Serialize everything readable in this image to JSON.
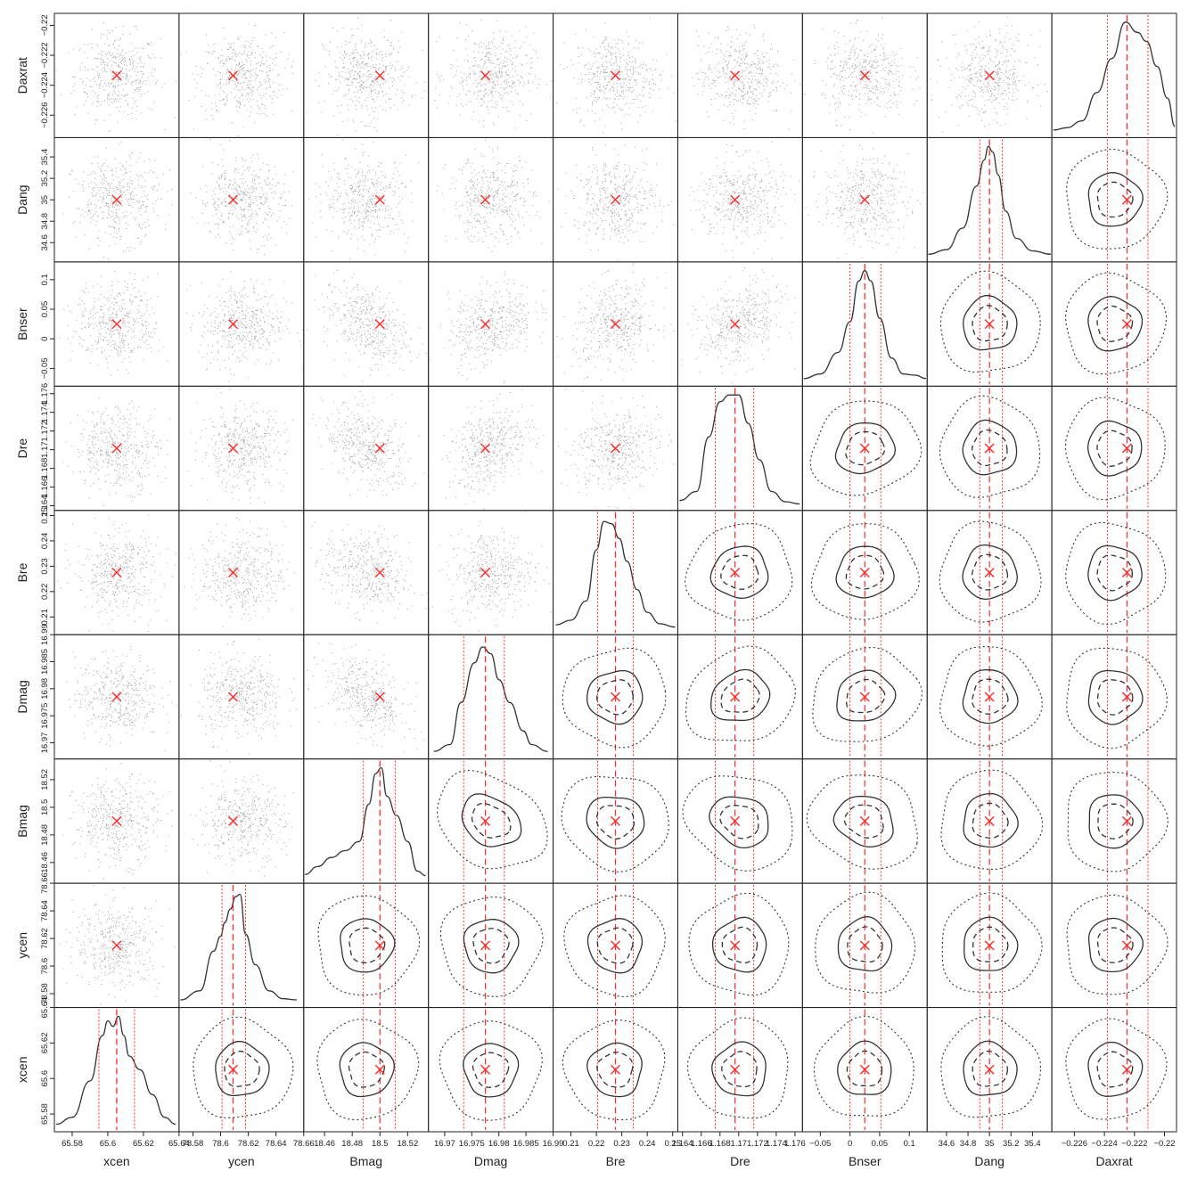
{
  "chart_data": {
    "type": "scatter",
    "subtype": "triangle-corner-plot",
    "parameters": [
      {
        "name": "xcen",
        "lim": [
          65.57,
          65.64
        ],
        "ticks": [
          65.58,
          65.6,
          65.62,
          65.64
        ],
        "tick_labels": [
          "65.58",
          "65.6",
          "65.62",
          "65.64"
        ],
        "best": 65.605,
        "dens": [
          [
            65.571,
            0.02
          ],
          [
            65.58,
            0.08
          ],
          [
            65.59,
            0.4
          ],
          [
            65.597,
            0.8
          ],
          [
            65.6,
            0.93
          ],
          [
            65.603,
            0.88
          ],
          [
            65.606,
            0.97
          ],
          [
            65.609,
            0.8
          ],
          [
            65.612,
            0.62
          ],
          [
            65.618,
            0.5
          ],
          [
            65.625,
            0.28
          ],
          [
            65.632,
            0.08
          ],
          [
            65.638,
            0.02
          ]
        ],
        "q": [
          65.595,
          65.605,
          65.615
        ]
      },
      {
        "name": "ycen",
        "lim": [
          78.57,
          78.66
        ],
        "ticks": [
          78.58,
          78.6,
          78.62,
          78.64,
          78.66
        ],
        "tick_labels": [
          "78.58",
          "78.6",
          "78.62",
          "78.64",
          "78.66"
        ],
        "best": 78.609,
        "dens": [
          [
            78.571,
            0.02
          ],
          [
            78.585,
            0.1
          ],
          [
            78.595,
            0.45
          ],
          [
            78.6,
            0.58
          ],
          [
            78.603,
            0.7
          ],
          [
            78.607,
            0.82
          ],
          [
            78.611,
            0.93
          ],
          [
            78.614,
            0.95
          ],
          [
            78.618,
            0.6
          ],
          [
            78.625,
            0.33
          ],
          [
            78.635,
            0.1
          ],
          [
            78.645,
            0.03
          ],
          [
            78.655,
            0.02
          ]
        ],
        "q": [
          78.601,
          78.609,
          78.618
        ]
      },
      {
        "name": "Bmag",
        "lim": [
          18.445,
          18.535
        ],
        "ticks": [
          18.46,
          18.48,
          18.5,
          18.52
        ],
        "tick_labels": [
          "18.46",
          "18.48",
          "18.5",
          "18.52"
        ],
        "best": 18.5,
        "dens": [
          [
            18.446,
            0.03
          ],
          [
            18.455,
            0.1
          ],
          [
            18.465,
            0.18
          ],
          [
            18.475,
            0.24
          ],
          [
            18.485,
            0.32
          ],
          [
            18.492,
            0.65
          ],
          [
            18.497,
            0.92
          ],
          [
            18.501,
            0.97
          ],
          [
            18.505,
            0.72
          ],
          [
            18.512,
            0.55
          ],
          [
            18.52,
            0.32
          ],
          [
            18.527,
            0.06
          ],
          [
            18.533,
            0.02
          ]
        ],
        "q": [
          18.488,
          18.5,
          18.511
        ]
      },
      {
        "name": "Dmag",
        "lim": [
          16.967,
          16.99
        ],
        "ticks": [
          16.97,
          16.975,
          16.98,
          16.985,
          16.99
        ],
        "tick_labels": [
          "16.97",
          "16.975",
          "16.98",
          "16.985",
          "16.99"
        ],
        "best": 16.9775,
        "dens": [
          [
            16.968,
            0.02
          ],
          [
            16.971,
            0.08
          ],
          [
            16.973,
            0.45
          ],
          [
            16.9755,
            0.8
          ],
          [
            16.977,
            0.94
          ],
          [
            16.9785,
            0.88
          ],
          [
            16.98,
            0.65
          ],
          [
            16.982,
            0.45
          ],
          [
            16.9845,
            0.2
          ],
          [
            16.986,
            0.08
          ],
          [
            16.989,
            0.02
          ]
        ],
        "q": [
          16.9735,
          16.9775,
          16.981
        ]
      },
      {
        "name": "Bre",
        "lim": [
          0.203,
          0.252
        ],
        "ticks": [
          0.21,
          0.22,
          0.23,
          0.24,
          0.25
        ],
        "tick_labels": [
          "0.21",
          "0.22",
          "0.23",
          "0.24",
          "0.25"
        ],
        "best": 0.2275,
        "dens": [
          [
            0.204,
            0.04
          ],
          [
            0.21,
            0.08
          ],
          [
            0.216,
            0.25
          ],
          [
            0.22,
            0.7
          ],
          [
            0.223,
            0.95
          ],
          [
            0.226,
            0.93
          ],
          [
            0.229,
            0.8
          ],
          [
            0.232,
            0.6
          ],
          [
            0.236,
            0.35
          ],
          [
            0.24,
            0.15
          ],
          [
            0.245,
            0.05
          ],
          [
            0.251,
            0.02
          ]
        ],
        "q": [
          0.2205,
          0.2275,
          0.2345
        ]
      },
      {
        "name": "Dre",
        "lim": [
          1.1635,
          1.1768
        ],
        "ticks": [
          1.164,
          1.166,
          1.168,
          1.17,
          1.172,
          1.174,
          1.176
        ],
        "tick_labels": [
          "1.164",
          "1.166",
          "1.168",
          "1.17",
          "1.172",
          "1.174",
          "1.176"
        ],
        "best": 1.1696,
        "dens": [
          [
            1.1637,
            0.04
          ],
          [
            1.1655,
            0.12
          ],
          [
            1.1668,
            0.6
          ],
          [
            1.168,
            0.91
          ],
          [
            1.169,
            0.97
          ],
          [
            1.17,
            0.97
          ],
          [
            1.171,
            0.72
          ],
          [
            1.1722,
            0.4
          ],
          [
            1.1735,
            0.12
          ],
          [
            1.175,
            0.03
          ],
          [
            1.1765,
            0.01
          ]
        ],
        "q": [
          1.1675,
          1.1696,
          1.1716
        ]
      },
      {
        "name": "Bnser",
        "lim": [
          -0.08,
          0.13
        ],
        "ticks": [
          -0.05,
          0,
          0.05,
          0.1
        ],
        "tick_labels": [
          "−0.05",
          "0",
          "0.05",
          "0.1"
        ],
        "best": 0.025,
        "dens": [
          [
            -0.078,
            0.02
          ],
          [
            -0.05,
            0.06
          ],
          [
            -0.02,
            0.25
          ],
          [
            0.0,
            0.52
          ],
          [
            0.015,
            0.88
          ],
          [
            0.025,
            0.97
          ],
          [
            0.035,
            0.88
          ],
          [
            0.05,
            0.55
          ],
          [
            0.07,
            0.2
          ],
          [
            0.09,
            0.06
          ],
          [
            0.11,
            0.05
          ],
          [
            0.128,
            0.02
          ]
        ],
        "q": [
          0.0,
          0.025,
          0.052
        ]
      },
      {
        "name": "Dang",
        "lim": [
          34.42,
          35.58
        ],
        "ticks": [
          34.6,
          34.8,
          35,
          35.2,
          35.4
        ],
        "tick_labels": [
          "34.6",
          "34.8",
          "35",
          "35.2",
          "35.4"
        ],
        "best": 35.0,
        "dens": [
          [
            34.43,
            0.02
          ],
          [
            34.6,
            0.06
          ],
          [
            34.75,
            0.25
          ],
          [
            34.88,
            0.62
          ],
          [
            34.95,
            0.85
          ],
          [
            34.99,
            0.97
          ],
          [
            35.03,
            0.92
          ],
          [
            35.08,
            0.72
          ],
          [
            35.15,
            0.4
          ],
          [
            35.25,
            0.16
          ],
          [
            35.4,
            0.05
          ],
          [
            35.57,
            0.02
          ]
        ],
        "q": [
          34.91,
          35.0,
          35.12
        ]
      },
      {
        "name": "Daxrat",
        "lim": [
          -0.2275,
          -0.2192
        ],
        "ticks": [
          -0.226,
          -0.224,
          -0.222,
          -0.22
        ],
        "tick_labels": [
          "−0.226",
          "−0.224",
          "−0.222",
          "−0.22"
        ],
        "best": -0.2225,
        "dens": [
          [
            -0.2274,
            0.02
          ],
          [
            -0.2265,
            0.04
          ],
          [
            -0.2255,
            0.1
          ],
          [
            -0.2245,
            0.35
          ],
          [
            -0.2235,
            0.65
          ],
          [
            -0.2226,
            0.97
          ],
          [
            -0.2218,
            0.88
          ],
          [
            -0.2212,
            0.8
          ],
          [
            -0.2205,
            0.58
          ],
          [
            -0.2198,
            0.3
          ],
          [
            -0.2193,
            0.05
          ]
        ],
        "q": [
          -0.2238,
          -0.2225,
          -0.2211
        ]
      }
    ],
    "correlations": [
      [
        0,
        0,
        0,
        0,
        0,
        0,
        0,
        0,
        0
      ],
      [
        0,
        0,
        0,
        0,
        0,
        0,
        0,
        0,
        0
      ],
      [
        0,
        0,
        0,
        -0.5,
        -0.25,
        -0.4,
        -0.35,
        0,
        0
      ],
      [
        0,
        0,
        -0.5,
        0,
        0.1,
        0.35,
        0.3,
        0,
        0
      ],
      [
        0,
        0,
        -0.25,
        0.1,
        0,
        0.15,
        0.15,
        0,
        0
      ],
      [
        0,
        0,
        -0.4,
        0.35,
        0.15,
        0,
        0.3,
        0,
        0
      ],
      [
        0,
        0,
        -0.35,
        0.3,
        0.15,
        0.3,
        0,
        0,
        0
      ],
      [
        0,
        0,
        0,
        0,
        0,
        0,
        0,
        0,
        0
      ],
      [
        0,
        0,
        0,
        0,
        0,
        0,
        0,
        0,
        0
      ]
    ],
    "lower_panels": "scatter points with best-fit marker",
    "upper_panels": "contours: 1-sigma solid, 0.5-sigma dashed, 2-sigma dotted, best-fit marker, quantile lines",
    "diagonal_panels": "1D density curve with median (dashed red) and quantiles (dotted red)",
    "marker_color": "#ff2a2a",
    "line_color": "#333333",
    "quantile_color": "#ff2a2a",
    "scatter_color": "#8a8a8a"
  }
}
